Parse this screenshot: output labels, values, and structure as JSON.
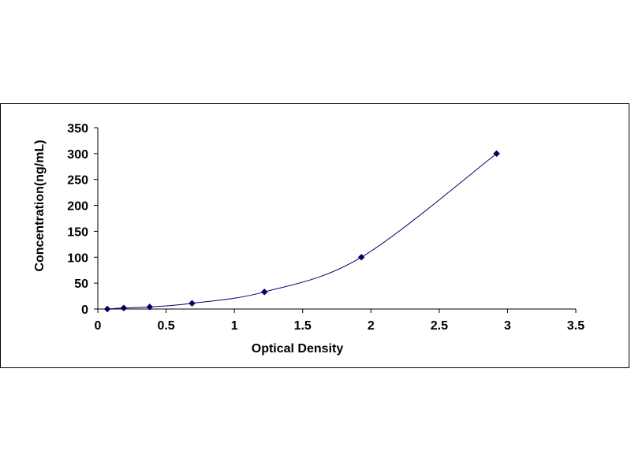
{
  "chart_data": {
    "type": "scatter",
    "title": "",
    "xlabel": "Optical Density",
    "ylabel": "Concentration(ng/mL)",
    "xlim": [
      0,
      3.5
    ],
    "ylim": [
      0,
      350
    ],
    "x_ticks": [
      "0",
      "0.5",
      "1",
      "1.5",
      "2",
      "2.5",
      "3",
      "3.5"
    ],
    "y_ticks": [
      "0",
      "50",
      "100",
      "150",
      "200",
      "250",
      "300",
      "350"
    ],
    "grid": false,
    "legend": "none",
    "trendline": "smooth",
    "series": [
      {
        "x": [
          0.07,
          0.19,
          0.38,
          0.69,
          1.22,
          1.93,
          2.92
        ],
        "y": [
          0,
          2,
          4,
          11,
          33,
          100,
          300
        ],
        "color": "#000066"
      }
    ]
  }
}
